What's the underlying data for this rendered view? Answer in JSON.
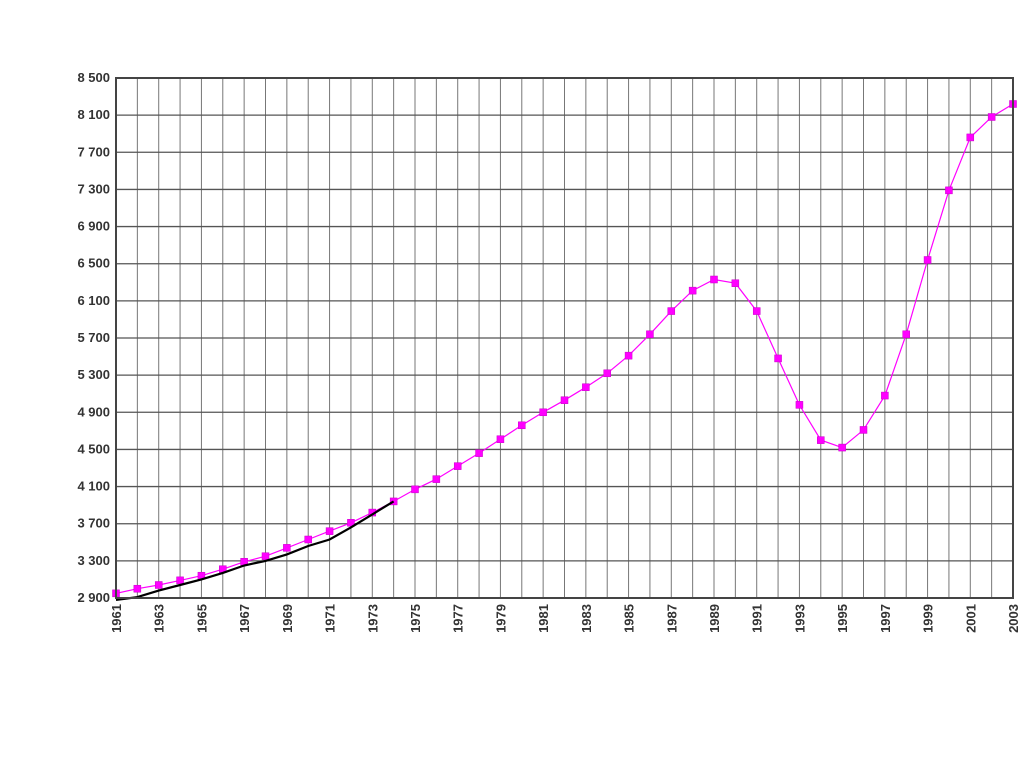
{
  "chart_data": {
    "type": "line",
    "title": "",
    "xlabel": "",
    "ylabel": "",
    "grid": true,
    "legend": "none",
    "xlim": [
      1961,
      2003
    ],
    "ylim": [
      2900,
      8500
    ],
    "y_ticks": [
      2900,
      3300,
      3700,
      4100,
      4500,
      4900,
      5300,
      5700,
      6100,
      6500,
      6900,
      7300,
      7700,
      8100,
      8500
    ],
    "y_tick_labels": [
      "2 900",
      "3 300",
      "3 700",
      "4 100",
      "4 500",
      "4 900",
      "5 300",
      "5 700",
      "6 100",
      "6 500",
      "6 900",
      "7 300",
      "7 700",
      "8 100",
      "8 500"
    ],
    "x_tick_labels": [
      "1961",
      "1963",
      "1965",
      "1967",
      "1969",
      "1971",
      "1973",
      "1975",
      "1977",
      "1979",
      "1981",
      "1983",
      "1985",
      "1987",
      "1989",
      "1991",
      "1993",
      "1995",
      "1997",
      "1999",
      "2001",
      "2003"
    ],
    "series": [
      {
        "color": "#ff00ff",
        "marker": "square",
        "x": [
          1961,
          1962,
          1963,
          1964,
          1965,
          1966,
          1967,
          1968,
          1969,
          1970,
          1971,
          1972,
          1973,
          1974,
          1975,
          1976,
          1977,
          1978,
          1979,
          1980,
          1981,
          1982,
          1983,
          1984,
          1985,
          1986,
          1987,
          1988,
          1989,
          1990,
          1991,
          1992,
          1993,
          1994,
          1995,
          1996,
          1997,
          1998,
          1999,
          2000,
          2001,
          2002,
          2003
        ],
        "values": [
          2950,
          3000,
          3040,
          3090,
          3140,
          3210,
          3290,
          3350,
          3440,
          3530,
          3620,
          3710,
          3820,
          3940,
          4070,
          4180,
          4320,
          4460,
          4610,
          4760,
          4900,
          5030,
          5170,
          5320,
          5510,
          5740,
          5990,
          6210,
          6330,
          6290,
          5990,
          5480,
          4980,
          4600,
          4520,
          4710,
          5080,
          5740,
          6540,
          7290,
          7860,
          8080,
          8220
        ]
      },
      {
        "color": "#000000",
        "marker": "none",
        "x": [
          1961,
          1962,
          1963,
          1964,
          1965,
          1966,
          1967,
          1968,
          1969,
          1970,
          1971,
          1972,
          1973,
          1974
        ],
        "values": [
          2880,
          2910,
          2980,
          3040,
          3100,
          3170,
          3250,
          3300,
          3370,
          3460,
          3530,
          3660,
          3800,
          3940
        ]
      }
    ]
  }
}
